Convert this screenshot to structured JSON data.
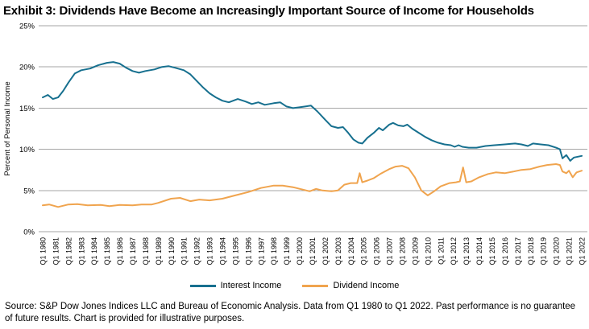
{
  "title": "Exhibit 3: Dividends Have Become an Increasingly Important Source of Income for Households",
  "footer": "Source: S&P Dow Jones Indices LLC and Bureau of Economic Analysis. Data from Q1 1980 to Q1 2022. Past performance is no guarantee of future results. Chart is provided for illustrative purposes.",
  "colors": {
    "grid": "#a6a6a6",
    "interest": "#17708f",
    "dividend": "#f0a44e"
  },
  "chart_data": {
    "type": "line",
    "title": "",
    "xlabel": "",
    "ylabel": "Percent of Personal Income",
    "xlim": [
      1980,
      2022
    ],
    "ylim": [
      0,
      25
    ],
    "grid": "horizontal",
    "legend_position": "bottom-center",
    "y_ticks": [
      {
        "value": 0,
        "label": "0%"
      },
      {
        "value": 5,
        "label": "5%"
      },
      {
        "value": 10,
        "label": "10%"
      },
      {
        "value": 15,
        "label": "15%"
      },
      {
        "value": 20,
        "label": "20%"
      },
      {
        "value": 25,
        "label": "25%"
      }
    ],
    "x_tick_labels": [
      "Q1 1980",
      "Q1 1981",
      "Q1 1982",
      "Q1 1983",
      "Q1 1984",
      "Q1 1985",
      "Q1 1986",
      "Q1 1987",
      "Q1 1988",
      "Q1 1989",
      "Q1 1990",
      "Q1 1991",
      "Q1 1992",
      "Q1 1993",
      "Q1 1994",
      "Q1 1995",
      "Q1 1996",
      "Q1 1997",
      "Q1 1998",
      "Q1 1999",
      "Q1 2000",
      "Q1 2001",
      "Q1 2002",
      "Q1 2003",
      "Q1 2004",
      "Q1 2005",
      "Q1 2006",
      "Q1 2007",
      "Q1 2008",
      "Q1 2009",
      "Q1 2010",
      "Q1 2011",
      "Q1 2012",
      "Q1 2013",
      "Q1 2014",
      "Q1 2015",
      "Q1 2016",
      "Q1 2017",
      "Q1 2018",
      "Q1 2019",
      "Q1 2020",
      "Q1 2021",
      "Q1 2022"
    ],
    "series": [
      {
        "name": "Interest Income",
        "color": "#17708f",
        "points": [
          [
            1980.0,
            16.3
          ],
          [
            1980.4,
            16.6
          ],
          [
            1980.8,
            16.1
          ],
          [
            1981.2,
            16.3
          ],
          [
            1981.6,
            17.1
          ],
          [
            1982.0,
            18.1
          ],
          [
            1982.5,
            19.2
          ],
          [
            1983.0,
            19.6
          ],
          [
            1983.7,
            19.8
          ],
          [
            1984.3,
            20.2
          ],
          [
            1985.0,
            20.5
          ],
          [
            1985.5,
            20.6
          ],
          [
            1986.0,
            20.4
          ],
          [
            1986.5,
            19.9
          ],
          [
            1987.0,
            19.5
          ],
          [
            1987.5,
            19.3
          ],
          [
            1988.0,
            19.5
          ],
          [
            1988.7,
            19.7
          ],
          [
            1989.3,
            20.0
          ],
          [
            1989.8,
            20.1
          ],
          [
            1990.3,
            19.9
          ],
          [
            1991.0,
            19.6
          ],
          [
            1991.5,
            19.1
          ],
          [
            1992.0,
            18.3
          ],
          [
            1992.5,
            17.5
          ],
          [
            1993.0,
            16.8
          ],
          [
            1993.5,
            16.3
          ],
          [
            1994.0,
            15.9
          ],
          [
            1994.5,
            15.7
          ],
          [
            1995.2,
            16.1
          ],
          [
            1995.8,
            15.8
          ],
          [
            1996.3,
            15.5
          ],
          [
            1996.8,
            15.7
          ],
          [
            1997.3,
            15.4
          ],
          [
            1998.0,
            15.6
          ],
          [
            1998.5,
            15.7
          ],
          [
            1999.0,
            15.2
          ],
          [
            1999.5,
            15.0
          ],
          [
            2000.0,
            15.1
          ],
          [
            2000.9,
            15.3
          ],
          [
            2001.4,
            14.6
          ],
          [
            2002.0,
            13.6
          ],
          [
            2002.5,
            12.8
          ],
          [
            2003.0,
            12.6
          ],
          [
            2003.4,
            12.7
          ],
          [
            2003.8,
            12.0
          ],
          [
            2004.2,
            11.2
          ],
          [
            2004.6,
            10.8
          ],
          [
            2004.9,
            10.7
          ],
          [
            2005.3,
            11.4
          ],
          [
            2005.8,
            12.0
          ],
          [
            2006.2,
            12.6
          ],
          [
            2006.5,
            12.3
          ],
          [
            2007.0,
            13.0
          ],
          [
            2007.3,
            13.2
          ],
          [
            2007.7,
            12.9
          ],
          [
            2008.1,
            12.8
          ],
          [
            2008.4,
            13.0
          ],
          [
            2008.8,
            12.5
          ],
          [
            2009.3,
            12.0
          ],
          [
            2009.8,
            11.5
          ],
          [
            2010.3,
            11.1
          ],
          [
            2010.8,
            10.8
          ],
          [
            2011.3,
            10.6
          ],
          [
            2011.8,
            10.5
          ],
          [
            2012.1,
            10.3
          ],
          [
            2012.4,
            10.5
          ],
          [
            2012.7,
            10.3
          ],
          [
            2013.2,
            10.2
          ],
          [
            2013.8,
            10.2
          ],
          [
            2014.5,
            10.4
          ],
          [
            2015.2,
            10.5
          ],
          [
            2016.0,
            10.6
          ],
          [
            2016.8,
            10.7
          ],
          [
            2017.3,
            10.6
          ],
          [
            2017.8,
            10.4
          ],
          [
            2018.2,
            10.7
          ],
          [
            2018.8,
            10.6
          ],
          [
            2019.4,
            10.5
          ],
          [
            2020.0,
            10.2
          ],
          [
            2020.3,
            10.0
          ],
          [
            2020.5,
            8.9
          ],
          [
            2020.8,
            9.3
          ],
          [
            2021.1,
            8.6
          ],
          [
            2021.4,
            9.0
          ],
          [
            2021.7,
            9.1
          ],
          [
            2022.0,
            9.2
          ]
        ]
      },
      {
        "name": "Dividend Income",
        "color": "#f0a44e",
        "points": [
          [
            1980.0,
            3.2
          ],
          [
            1980.5,
            3.3
          ],
          [
            1981.2,
            3.0
          ],
          [
            1982.0,
            3.3
          ],
          [
            1982.7,
            3.35
          ],
          [
            1983.5,
            3.2
          ],
          [
            1984.5,
            3.25
          ],
          [
            1985.2,
            3.1
          ],
          [
            1986.0,
            3.25
          ],
          [
            1987.0,
            3.2
          ],
          [
            1987.7,
            3.3
          ],
          [
            1988.5,
            3.3
          ],
          [
            1989.0,
            3.5
          ],
          [
            1990.0,
            4.0
          ],
          [
            1990.7,
            4.1
          ],
          [
            1991.5,
            3.7
          ],
          [
            1992.2,
            3.9
          ],
          [
            1993.0,
            3.8
          ],
          [
            1994.0,
            4.0
          ],
          [
            1995.0,
            4.4
          ],
          [
            1996.0,
            4.8
          ],
          [
            1997.0,
            5.3
          ],
          [
            1998.0,
            5.6
          ],
          [
            1998.7,
            5.6
          ],
          [
            1999.5,
            5.4
          ],
          [
            2000.3,
            5.1
          ],
          [
            2000.8,
            4.9
          ],
          [
            2001.3,
            5.2
          ],
          [
            2001.8,
            5.0
          ],
          [
            2002.5,
            4.9
          ],
          [
            2003.0,
            5.0
          ],
          [
            2003.5,
            5.7
          ],
          [
            2004.0,
            5.9
          ],
          [
            2004.5,
            5.9
          ],
          [
            2004.7,
            7.1
          ],
          [
            2004.9,
            6.0
          ],
          [
            2005.3,
            6.2
          ],
          [
            2005.8,
            6.5
          ],
          [
            2006.3,
            7.0
          ],
          [
            2007.0,
            7.6
          ],
          [
            2007.5,
            7.9
          ],
          [
            2008.0,
            8.0
          ],
          [
            2008.5,
            7.7
          ],
          [
            2009.0,
            6.6
          ],
          [
            2009.5,
            5.0
          ],
          [
            2010.0,
            4.4
          ],
          [
            2010.5,
            4.9
          ],
          [
            2011.0,
            5.5
          ],
          [
            2011.7,
            5.9
          ],
          [
            2012.2,
            6.0
          ],
          [
            2012.5,
            6.1
          ],
          [
            2012.75,
            7.8
          ],
          [
            2013.0,
            6.0
          ],
          [
            2013.4,
            6.1
          ],
          [
            2014.0,
            6.6
          ],
          [
            2014.7,
            7.0
          ],
          [
            2015.3,
            7.2
          ],
          [
            2016.0,
            7.1
          ],
          [
            2016.7,
            7.3
          ],
          [
            2017.3,
            7.5
          ],
          [
            2018.0,
            7.6
          ],
          [
            2018.7,
            7.9
          ],
          [
            2019.3,
            8.1
          ],
          [
            2020.0,
            8.2
          ],
          [
            2020.3,
            8.1
          ],
          [
            2020.5,
            7.3
          ],
          [
            2020.8,
            7.1
          ],
          [
            2021.0,
            7.4
          ],
          [
            2021.3,
            6.6
          ],
          [
            2021.6,
            7.2
          ],
          [
            2022.0,
            7.4
          ]
        ]
      }
    ]
  }
}
